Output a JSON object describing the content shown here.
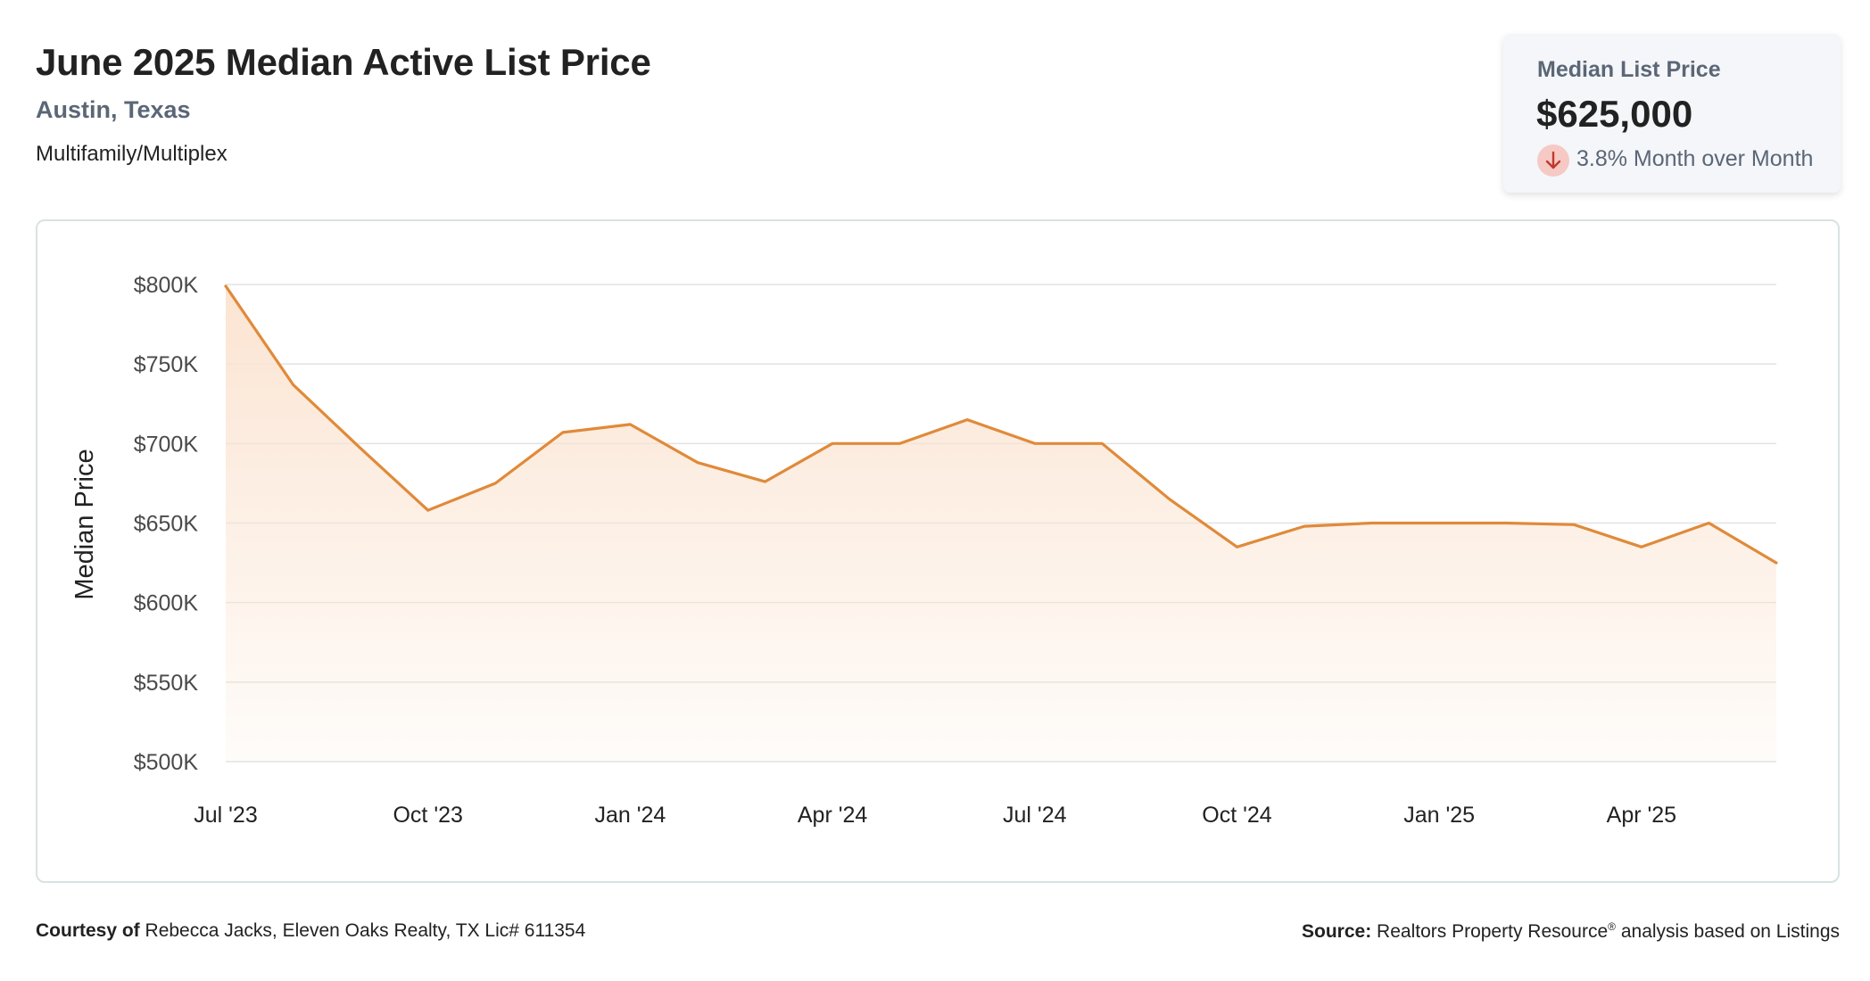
{
  "header": {
    "title": "June 2025 Median Active List Price",
    "location": "Austin, Texas",
    "property_type": "Multifamily/Multiplex"
  },
  "summary": {
    "label": "Median List Price",
    "value": "$625,000",
    "change_text": "3.8% Month over Month",
    "change_icon": "arrow-down-icon"
  },
  "colors": {
    "line": "#e08a3a",
    "fill_top": "#fbe3d0",
    "grid": "#e3e3e3",
    "down_badge": "#f6c9c4",
    "down_arrow": "#c0392b"
  },
  "chart_data": {
    "type": "area",
    "title": "",
    "ylabel": "Median Price",
    "xlabel": "",
    "ylim": [
      500000,
      800000
    ],
    "y_ticks": [
      500000,
      550000,
      600000,
      650000,
      700000,
      750000,
      800000
    ],
    "y_tick_labels": [
      "$500K",
      "$550K",
      "$600K",
      "$650K",
      "$700K",
      "$750K",
      "$800K"
    ],
    "x": [
      "Jul '23",
      "Aug '23",
      "Sep '23",
      "Oct '23",
      "Nov '23",
      "Dec '23",
      "Jan '24",
      "Feb '24",
      "Mar '24",
      "Apr '24",
      "May '24",
      "Jun '24",
      "Jul '24",
      "Aug '24",
      "Sep '24",
      "Oct '24",
      "Nov '24",
      "Dec '24",
      "Jan '25",
      "Feb '25",
      "Mar '25",
      "Apr '25",
      "May '25",
      "Jun '25"
    ],
    "x_tick_labels": [
      "Jul '23",
      "Oct '23",
      "Jan '24",
      "Apr '24",
      "Jul '24",
      "Oct '24",
      "Jan '25",
      "Apr '25"
    ],
    "x_tick_index": [
      0,
      3,
      6,
      9,
      12,
      15,
      18,
      21
    ],
    "series": [
      {
        "name": "",
        "values": [
          799000,
          737000,
          697000,
          658000,
          675000,
          707000,
          712000,
          688000,
          676000,
          700000,
          700000,
          715000,
          700000,
          700000,
          665000,
          635000,
          648000,
          650000,
          650000,
          650000,
          649000,
          635000,
          650000,
          625000
        ]
      }
    ],
    "grid": true,
    "legend": "none"
  },
  "footer": {
    "courtesy_label": "Courtesy of",
    "courtesy_text": "Rebecca Jacks, Eleven Oaks Realty, TX Lic# 611354",
    "source_label": "Source:",
    "source_name": "Realtors Property Resource",
    "source_mark": "®",
    "source_suffix": "analysis based on Listings"
  }
}
